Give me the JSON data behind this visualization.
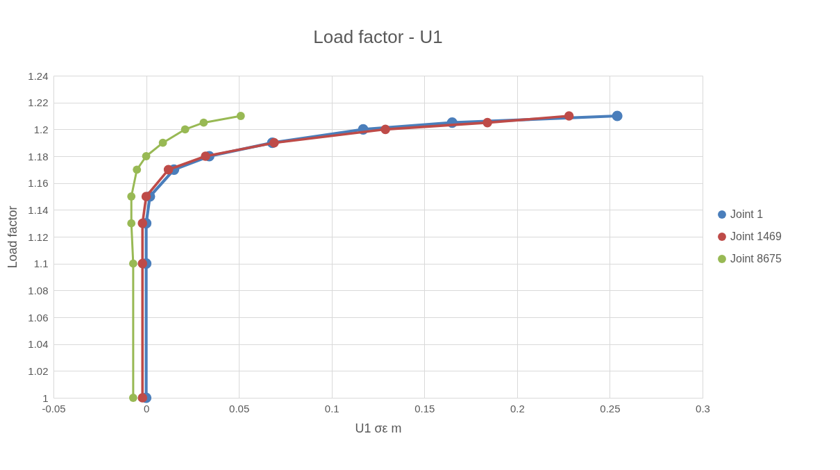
{
  "chart_data": {
    "type": "line",
    "title": "Load factor - U1",
    "xlabel": "U1 σε m",
    "ylabel": "Load factor",
    "series": [
      {
        "name": "Joint 1",
        "color": "#4a7ebb",
        "x": [
          0,
          0,
          0,
          0.002,
          0.015,
          0.034,
          0.068,
          0.117,
          0.165,
          0.254
        ],
        "values": [
          1,
          1.1,
          1.13,
          1.15,
          1.17,
          1.18,
          1.19,
          1.2,
          1.205,
          1.21
        ]
      },
      {
        "name": "Joint 1469",
        "color": "#be4b48",
        "x": [
          -0.002,
          -0.002,
          -0.002,
          0,
          0.012,
          0.032,
          0.069,
          0.129,
          0.184,
          0.228
        ],
        "values": [
          1,
          1.1,
          1.13,
          1.15,
          1.17,
          1.18,
          1.19,
          1.2,
          1.205,
          1.21
        ]
      },
      {
        "name": "Joint 8675",
        "color": "#98b954",
        "x": [
          -0.007,
          -0.007,
          -0.008,
          -0.008,
          -0.005,
          0,
          0.009,
          0.021,
          0.031,
          0.051
        ],
        "values": [
          1,
          1.1,
          1.13,
          1.15,
          1.17,
          1.18,
          1.19,
          1.2,
          1.205,
          1.21
        ]
      }
    ],
    "xlim": [
      -0.05,
      0.3
    ],
    "xticks": [
      -0.05,
      0,
      0.05,
      0.1,
      0.15,
      0.2,
      0.25,
      0.3
    ],
    "ylim": [
      1,
      1.24
    ],
    "yticks": [
      1,
      1.02,
      1.04,
      1.06,
      1.08,
      1.1,
      1.12,
      1.14,
      1.16,
      1.18,
      1.2,
      1.22,
      1.24
    ],
    "grid": true,
    "legend": "right",
    "marker": "circle",
    "line_style": "solid"
  }
}
